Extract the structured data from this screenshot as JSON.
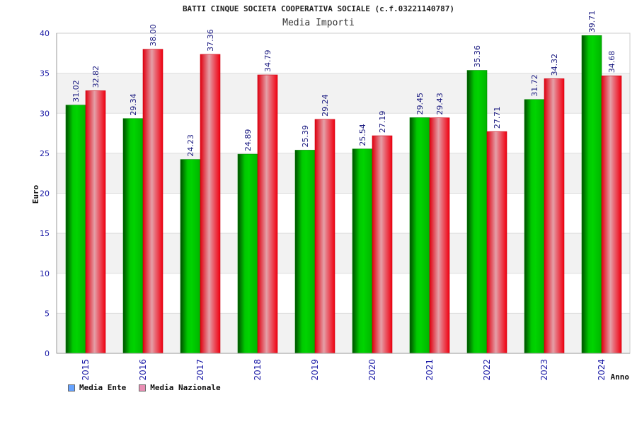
{
  "title": "BATTI CINQUE SOCIETA COOPERATIVA SOCIALE (c.f.03221140787)",
  "subtitle": "Media Importi",
  "colors": {
    "series1": "#00b000",
    "series2": "#e8101c",
    "legend1": "#66a3ff",
    "legend2": "#e98fb4",
    "axis_text": "#1a1aa6",
    "band": "#f2f2f2"
  },
  "chart_data": {
    "type": "bar",
    "xlabel": "Anno",
    "ylabel": "Euro",
    "ylim": [
      0,
      40
    ],
    "yticks": [
      0,
      5,
      10,
      15,
      20,
      25,
      30,
      35,
      40
    ],
    "grid": true,
    "legend_position": "bottom-left",
    "categories": [
      "2015",
      "2016",
      "2017",
      "2018",
      "2019",
      "2020",
      "2021",
      "2022",
      "2023",
      "2024"
    ],
    "series": [
      {
        "name": "Media Ente",
        "values": [
          31.02,
          29.34,
          24.23,
          24.89,
          25.39,
          25.54,
          29.45,
          35.36,
          31.72,
          39.71
        ],
        "labels": [
          "31.02",
          "29.34",
          "24.23",
          "24.89",
          "25.39",
          "25.54",
          "29.45",
          "35.36",
          "31.72",
          "39.71"
        ]
      },
      {
        "name": "Media Nazionale",
        "values": [
          32.82,
          38.0,
          37.36,
          34.79,
          29.24,
          27.19,
          29.43,
          27.71,
          34.32,
          34.68
        ],
        "labels": [
          "32.82",
          "38.00",
          "37.36",
          "34.79",
          "29.24",
          "27.19",
          "29.43",
          "27.71",
          "34.32",
          "34.68"
        ]
      }
    ]
  }
}
